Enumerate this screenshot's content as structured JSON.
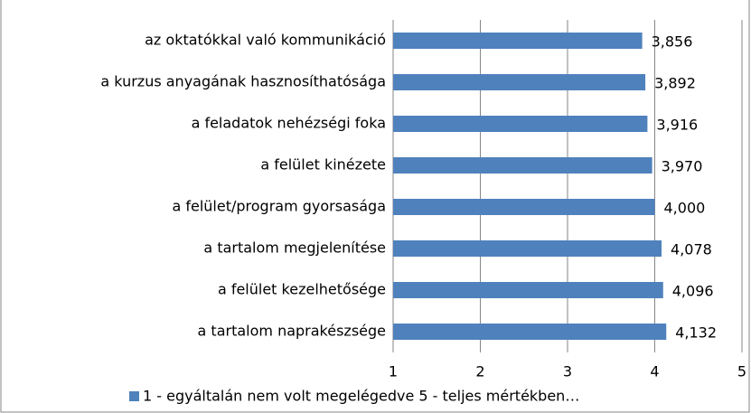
{
  "chart_data": {
    "type": "bar",
    "orientation": "horizontal",
    "categories": [
      "az oktatókkal való kommunikáció",
      "a kurzus anyagának hasznosíthatósága",
      "a feladatok nehézségi foka",
      "a felület kinézete",
      "a felület/program gyorsasága",
      "a tartalom megjelenítése",
      "a felület kezelhetősége",
      "a tartalom naprakészsége"
    ],
    "series": [
      {
        "name": "1 - egyáltalán nem volt megelégedve 5 - teljes mértékben…",
        "color": "#4f81bd",
        "values": [
          3.856,
          3.892,
          3.916,
          3.97,
          4.0,
          4.078,
          4.096,
          4.132
        ],
        "value_labels": [
          "3,856",
          "3,892",
          "3,916",
          "3,970",
          "4,000",
          "4,078",
          "4,096",
          "4,132"
        ]
      }
    ],
    "xlim": [
      1,
      5
    ],
    "xticks": [
      1,
      2,
      3,
      4,
      5
    ],
    "grid": true,
    "legend": "bottom"
  }
}
